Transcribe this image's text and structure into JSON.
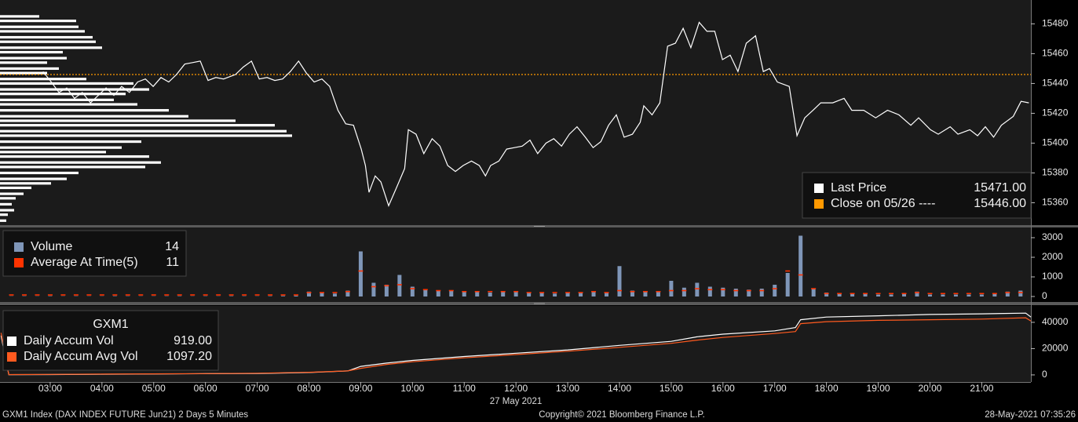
{
  "chart_data": [
    {
      "type": "line",
      "xlim": [
        2.03,
        21.95
      ],
      "ylim": [
        15345,
        15496
      ],
      "yticks": [
        15360,
        15380,
        15400,
        15420,
        15440,
        15460,
        15480
      ],
      "series": [
        {
          "name": "Last Price",
          "color": "#ffffff",
          "legend_value": {
            "value": 15471,
            "label": "15471.00"
          },
          "x": [
            2.86,
            3.02,
            3.17,
            3.32,
            3.47,
            3.62,
            3.78,
            3.93,
            4.08,
            4.23,
            4.38,
            4.53,
            4.69,
            4.84,
            4.99,
            5.14,
            5.29,
            5.44,
            5.6,
            5.75,
            5.9,
            6.05,
            6.2,
            6.35,
            6.58,
            6.73,
            6.89,
            7.04,
            7.19,
            7.34,
            7.49,
            7.64,
            7.8,
            7.95,
            8.1,
            8.25,
            8.4,
            8.56,
            8.71,
            8.86,
            9.01,
            9.09,
            9.16,
            9.28,
            9.39,
            9.54,
            9.69,
            9.85,
            9.92,
            10.07,
            10.22,
            10.38,
            10.53,
            10.68,
            10.83,
            10.98,
            11.14,
            11.29,
            11.41,
            11.51,
            11.67,
            11.82,
            11.97,
            12.12,
            12.27,
            12.42,
            12.58,
            12.73,
            12.88,
            13.03,
            13.18,
            13.34,
            13.49,
            13.64,
            13.79,
            13.94,
            14.09,
            14.25,
            14.4,
            14.47,
            14.63,
            14.78,
            14.93,
            15.08,
            15.23,
            15.38,
            15.54,
            15.69,
            15.84,
            15.99,
            16.14,
            16.29,
            16.45,
            16.63,
            16.78,
            16.9,
            17.05,
            17.28,
            17.43,
            17.58,
            17.74,
            17.89,
            18.12,
            18.34,
            18.49,
            18.72,
            18.95,
            19.18,
            19.4,
            19.63,
            19.78,
            20.01,
            20.16,
            20.39,
            20.54,
            20.77,
            20.92,
            21.07,
            21.23,
            21.38,
            21.61,
            21.76,
            21.91
          ],
          "values": [
            15448,
            15441,
            15434,
            15437,
            15430,
            15434,
            15427,
            15432,
            15437,
            15432,
            15438,
            15434,
            15441,
            15443,
            15438,
            15444,
            15441,
            15446,
            15453,
            15454,
            15455,
            15442,
            15444,
            15443,
            15446,
            15451,
            15455,
            15443,
            15444,
            15442,
            15443,
            15448,
            15455,
            15447,
            15441,
            15443,
            15438,
            15422,
            15413,
            15412,
            15396,
            15385,
            15367,
            15378,
            15374,
            15358,
            15370,
            15383,
            15409,
            15406,
            15393,
            15403,
            15398,
            15385,
            15381,
            15385,
            15388,
            15385,
            15378,
            15385,
            15388,
            15396,
            15397,
            15398,
            15402,
            15393,
            15400,
            15403,
            15398,
            15406,
            15411,
            15404,
            15397,
            15401,
            15412,
            15419,
            15404,
            15406,
            15414,
            15425,
            15419,
            15427,
            15465,
            15467,
            15477,
            15464,
            15481,
            15475,
            15475,
            15456,
            15459,
            15448,
            15467,
            15472,
            15448,
            15450,
            15441,
            15438,
            15405,
            15417,
            15422,
            15427,
            15427,
            15430,
            15422,
            15422,
            15417,
            15422,
            15419,
            15412,
            15417,
            15409,
            15406,
            15411,
            15406,
            15409,
            15405,
            15411,
            15404,
            15412,
            15418,
            15428,
            15427
          ]
        }
      ],
      "reference_line": {
        "name": "Close on 05/26 ----",
        "color": "#ff9900",
        "value": 15446,
        "label": "15446.00"
      },
      "profile": {
        "color": "#ffffff",
        "prices": [
          15485,
          15482,
          15478,
          15475,
          15471,
          15468,
          15464,
          15461,
          15457,
          15454,
          15450,
          15447,
          15443,
          15440,
          15436,
          15433,
          15429,
          15426,
          15422,
          15418,
          15415,
          15412,
          15408,
          15405,
          15401,
          15397,
          15394,
          15391,
          15387,
          15384,
          15380,
          15376,
          15373,
          15370,
          15366,
          15363,
          15359,
          15355,
          15352,
          15348
        ],
        "values": [
          50,
          97,
          100,
          108,
          118,
          122,
          130,
          80,
          85,
          60,
          75,
          60,
          110,
          170,
          190,
          160,
          145,
          175,
          215,
          240,
          300,
          350,
          365,
          372,
          180,
          155,
          135,
          190,
          205,
          185,
          100,
          85,
          65,
          40,
          30,
          20,
          15,
          18,
          10,
          8
        ]
      }
    },
    {
      "type": "bar",
      "xlim": [
        2.03,
        21.95
      ],
      "ylim": [
        -280,
        3520
      ],
      "yticks": [
        0,
        1000,
        2000,
        3000
      ],
      "x": [
        2.25,
        2.5,
        2.75,
        3,
        3.25,
        3.5,
        3.75,
        4,
        4.25,
        4.5,
        4.75,
        5,
        5.25,
        5.5,
        5.75,
        6,
        6.25,
        6.5,
        6.75,
        7,
        7.25,
        7.5,
        7.75,
        8,
        8.25,
        8.5,
        8.75,
        9,
        9.25,
        9.5,
        9.75,
        10,
        10.25,
        10.5,
        10.75,
        11,
        11.25,
        11.5,
        11.75,
        12,
        12.25,
        12.5,
        12.75,
        13,
        13.25,
        13.5,
        13.75,
        14,
        14.25,
        14.5,
        14.75,
        15,
        15.25,
        15.5,
        15.75,
        16,
        16.25,
        16.5,
        16.75,
        17,
        17.25,
        17.5,
        17.75,
        18,
        18.25,
        18.5,
        18.75,
        19,
        19.25,
        19.5,
        19.75,
        20,
        20.25,
        20.5,
        20.75,
        21,
        21.25,
        21.5,
        21.75
      ],
      "series": [
        {
          "name": "Volume",
          "color": "#7f96b8",
          "style": "bar",
          "legend_value": 14,
          "values": [
            10,
            15,
            10,
            20,
            10,
            15,
            10,
            10,
            20,
            15,
            10,
            10,
            15,
            20,
            10,
            15,
            10,
            20,
            15,
            10,
            20,
            30,
            40,
            250,
            200,
            150,
            300,
            2300,
            700,
            600,
            1100,
            500,
            350,
            300,
            300,
            250,
            250,
            200,
            250,
            250,
            200,
            200,
            150,
            200,
            200,
            250,
            200,
            1550,
            300,
            250,
            250,
            800,
            450,
            700,
            500,
            450,
            400,
            350,
            400,
            600,
            1200,
            3100,
            400,
            200,
            150,
            150,
            150,
            100,
            100,
            150,
            250,
            100,
            100,
            100,
            100,
            100,
            150,
            250,
            300
          ]
        },
        {
          "name": "Average At Time(5)",
          "color": "#ff3300",
          "style": "dash",
          "legend_value": 11,
          "values": [
            80,
            80,
            80,
            80,
            80,
            80,
            80,
            80,
            80,
            80,
            80,
            80,
            80,
            80,
            80,
            80,
            80,
            80,
            80,
            80,
            80,
            80,
            80,
            200,
            200,
            200,
            250,
            1300,
            500,
            550,
            600,
            400,
            350,
            300,
            300,
            250,
            250,
            250,
            250,
            250,
            200,
            200,
            200,
            200,
            200,
            250,
            200,
            300,
            250,
            250,
            250,
            300,
            300,
            400,
            350,
            350,
            300,
            300,
            300,
            400,
            1300,
            1100,
            400,
            150,
            150,
            150,
            150,
            150,
            150,
            150,
            200,
            150,
            150,
            150,
            150,
            150,
            150,
            200,
            200
          ]
        }
      ]
    },
    {
      "type": "line",
      "legend_title": "GXM1",
      "xlabel": "27 May 2021",
      "xlim": [
        2.03,
        21.95
      ],
      "ylim": [
        -5400,
        52500
      ],
      "yticks": [
        0,
        20000,
        40000
      ],
      "xticks": [
        {
          "value": 3,
          "label": "03:00"
        },
        {
          "value": 4,
          "label": "04:00"
        },
        {
          "value": 5,
          "label": "05:00"
        },
        {
          "value": 6,
          "label": "06:00"
        },
        {
          "value": 7,
          "label": "07:00"
        },
        {
          "value": 8,
          "label": "08:00"
        },
        {
          "value": 9,
          "label": "09:00"
        },
        {
          "value": 10,
          "label": "10:00"
        },
        {
          "value": 11,
          "label": "11:00"
        },
        {
          "value": 12,
          "label": "12:00"
        },
        {
          "value": 13,
          "label": "13:00"
        },
        {
          "value": 14,
          "label": "14:00"
        },
        {
          "value": 15,
          "label": "15:00"
        },
        {
          "value": 16,
          "label": "16:00"
        },
        {
          "value": 17,
          "label": "17:00"
        },
        {
          "value": 18,
          "label": "18:00"
        },
        {
          "value": 19,
          "label": "19:00"
        },
        {
          "value": 20,
          "label": "20:00"
        },
        {
          "value": 21,
          "label": "21:00"
        }
      ],
      "x": [
        2.05,
        2.2,
        3,
        4,
        5,
        6,
        7,
        8,
        8.75,
        9,
        9.5,
        10,
        11,
        12,
        13,
        14,
        15,
        15.5,
        16,
        17,
        17.4,
        17.5,
        18,
        19,
        20,
        21,
        21.85,
        21.95
      ],
      "series": [
        {
          "name": "Daily Accum Vol",
          "color": "#ffffff",
          "legend_value": {
            "value": 919,
            "label": "919.00"
          },
          "values": [
            30000,
            200,
            300,
            500,
            700,
            900,
            1100,
            1800,
            3000,
            6500,
            9000,
            11000,
            14000,
            16500,
            19000,
            22500,
            25500,
            29000,
            31000,
            33500,
            36000,
            42000,
            44000,
            45000,
            46000,
            46500,
            47000,
            44000
          ]
        },
        {
          "name": "Daily Accum Avg Vol",
          "color": "#ff5a1f",
          "legend_value": {
            "value": 1097.2,
            "label": "1097.20"
          },
          "values": [
            32000,
            300,
            400,
            600,
            800,
            1000,
            1300,
            2000,
            3000,
            5000,
            8000,
            10000,
            13000,
            15500,
            18000,
            21000,
            24000,
            26500,
            28500,
            31500,
            33000,
            39000,
            40500,
            41500,
            42000,
            42500,
            43500,
            41000
          ]
        }
      ]
    }
  ],
  "footer": {
    "left": "GXM1 Index (DAX INDEX FUTURE  Jun21) 2 Days 5 Minutes",
    "center": "Copyright© 2021 Bloomberg Finance L.P.",
    "right": "28-May-2021 07:35:26"
  }
}
